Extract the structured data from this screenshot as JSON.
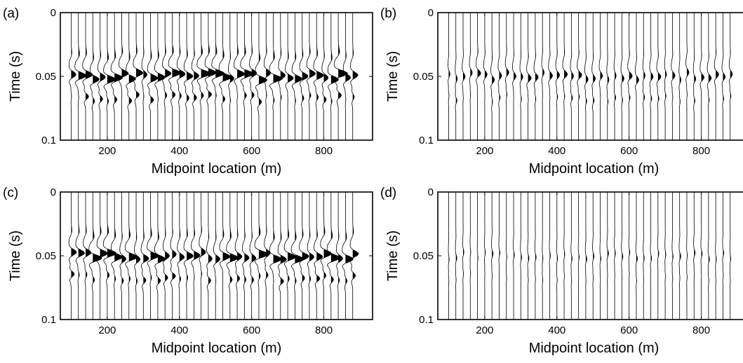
{
  "chart_data": [
    {
      "type": "seismic-wiggle",
      "panel_label": "(a)",
      "xlabel": "Midpoint location (m)",
      "ylabel": "Time (s)",
      "xlim": [
        70,
        935
      ],
      "ylim": [
        0.1,
        0
      ],
      "xticks": [
        200,
        400,
        600,
        800
      ],
      "yticks": [
        0,
        0.05,
        0.1
      ],
      "ytick_labels": [
        "0",
        "0.05",
        "0.1"
      ],
      "trace_count": 40,
      "trace_spacing_m": 20,
      "first_trace_m": 100,
      "event_time_s": 0.05,
      "event_amplitude": 1.0,
      "fill": "positive lobes black"
    },
    {
      "type": "seismic-wiggle",
      "panel_label": "(b)",
      "xlabel": "Midpoint location (m)",
      "ylabel": "Time (s)",
      "xlim": [
        70,
        935
      ],
      "ylim": [
        0.1,
        0
      ],
      "xticks": [
        200,
        400,
        600,
        800
      ],
      "yticks": [
        0,
        0.05,
        0.1
      ],
      "ytick_labels": [
        "0",
        "0.05",
        "0.1"
      ],
      "trace_count": 40,
      "trace_spacing_m": 20,
      "first_trace_m": 100,
      "event_time_s": 0.05,
      "event_amplitude": 0.35,
      "fill": "positive lobes black"
    },
    {
      "type": "seismic-wiggle",
      "panel_label": "(c)",
      "xlabel": "Midpoint location (m)",
      "ylabel": "Time (s)",
      "xlim": [
        70,
        935
      ],
      "ylim": [
        0.1,
        0
      ],
      "xticks": [
        200,
        400,
        600,
        800
      ],
      "yticks": [
        0,
        0.05,
        0.1
      ],
      "ytick_labels": [
        "0",
        "0.05",
        "0.1"
      ],
      "trace_count": 40,
      "trace_spacing_m": 20,
      "first_trace_m": 100,
      "event_time_s": 0.05,
      "event_amplitude": 1.0,
      "fill": "positive lobes black"
    },
    {
      "type": "seismic-wiggle",
      "panel_label": "(d)",
      "xlabel": "Midpoint location (m)",
      "ylabel": "Time (s)",
      "xlim": [
        70,
        935
      ],
      "ylim": [
        0.1,
        0
      ],
      "xticks": [
        200,
        400,
        600,
        800
      ],
      "yticks": [
        0,
        0.05,
        0.1
      ],
      "ytick_labels": [
        "0",
        "0.05",
        "0.1"
      ],
      "trace_count": 40,
      "trace_spacing_m": 20,
      "first_trace_m": 100,
      "event_time_s": 0.05,
      "event_amplitude": 0.12,
      "fill": "positive lobes black"
    }
  ]
}
